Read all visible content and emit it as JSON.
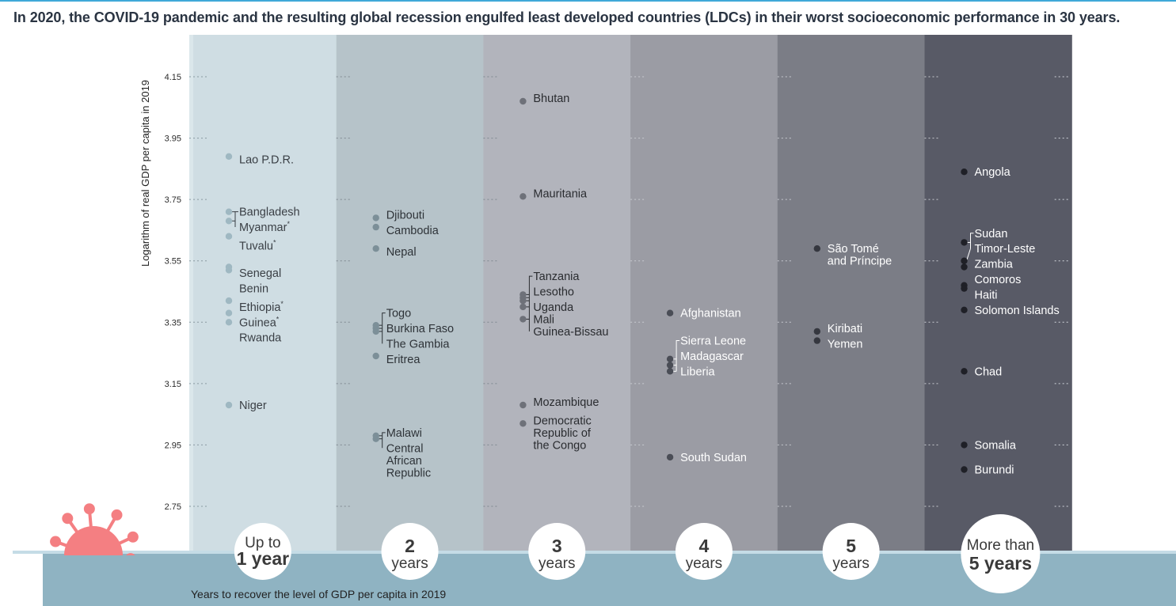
{
  "headline": "In 2020, the COVID-19 pandemic and the resulting global recession engulfed least developed countries (LDCs) in their worst socioeconomic performance in 30 years.",
  "chart_data": {
    "type": "scatter",
    "ylabel": "Logarithm of real GDP per capita in 2019",
    "xlabel": "Years to recover the level of GDP per capita in 2019",
    "yticks": [
      4.15,
      3.95,
      3.75,
      3.55,
      3.35,
      3.15,
      2.95,
      2.75
    ],
    "ylim": [
      2.6,
      4.29
    ],
    "colors": {
      "band_fills": [
        "#cfdde3",
        "#b6c3c9",
        "#b2b4bc",
        "#9b9ca4",
        "#7b7d86",
        "#585a66"
      ],
      "dot_colors": [
        "#9fb8c2",
        "#7c8f98",
        "#6e7179",
        "#4a4d56",
        "#35373f",
        "#1f2027"
      ],
      "label_colors": [
        "#3a3f45",
        "#2e3338",
        "#2a2c30",
        "#ffffff",
        "#ffffff",
        "#ffffff"
      ],
      "floor": "#8fb3c2",
      "virus": "#f47f82"
    },
    "groups": [
      {
        "category_line1": "Up to",
        "category_line2": "1 year",
        "label_style": "a",
        "countries": [
          {
            "name": "Lao P.D.R.",
            "y": 3.89
          },
          {
            "name": "Bangladesh",
            "y": 3.71
          },
          {
            "name": "Myanmar*",
            "y": 3.68
          },
          {
            "name": "Tuvalu*",
            "y": 3.63
          },
          {
            "name": "Senegal",
            "y": 3.53
          },
          {
            "name": "Benin",
            "y": 3.52
          },
          {
            "name": "Ethiopia*",
            "y": 3.42
          },
          {
            "name": "Guinea*",
            "y": 3.38
          },
          {
            "name": "Rwanda",
            "y": 3.35
          },
          {
            "name": "Niger",
            "y": 3.08
          }
        ]
      },
      {
        "category_line1": "2",
        "category_line2": "years",
        "label_style": "b",
        "countries": [
          {
            "name": "Djibouti",
            "y": 3.69
          },
          {
            "name": "Cambodia",
            "y": 3.66
          },
          {
            "name": "Nepal",
            "y": 3.59
          },
          {
            "name": "Togo",
            "y": 3.34
          },
          {
            "name": "Burkina Faso",
            "y": 3.33
          },
          {
            "name": "The Gambia",
            "y": 3.32
          },
          {
            "name": "Eritrea",
            "y": 3.24
          },
          {
            "name": "Malawi",
            "y": 2.98
          },
          {
            "name": "Central African Republic",
            "y": 2.97
          }
        ]
      },
      {
        "category_line1": "3",
        "category_line2": "years",
        "label_style": "b",
        "countries": [
          {
            "name": "Bhutan",
            "y": 4.07
          },
          {
            "name": "Mauritania",
            "y": 3.76
          },
          {
            "name": "Tanzania",
            "y": 3.44
          },
          {
            "name": "Lesotho",
            "y": 3.43
          },
          {
            "name": "Uganda",
            "y": 3.42
          },
          {
            "name": "Mali",
            "y": 3.4
          },
          {
            "name": "Guinea-Bissau",
            "y": 3.36
          },
          {
            "name": "Mozambique",
            "y": 3.08
          },
          {
            "name": "Democratic Republic of the Congo",
            "y": 3.02
          }
        ]
      },
      {
        "category_line1": "4",
        "category_line2": "years",
        "label_style": "b",
        "countries": [
          {
            "name": "Afghanistan",
            "y": 3.38
          },
          {
            "name": "Sierra Leone",
            "y": 3.23
          },
          {
            "name": "Madagascar",
            "y": 3.21
          },
          {
            "name": "Liberia",
            "y": 3.19
          },
          {
            "name": "South Sudan",
            "y": 2.91
          }
        ]
      },
      {
        "category_line1": "5",
        "category_line2": "years",
        "label_style": "b",
        "countries": [
          {
            "name": "São Tomé and Príncipe",
            "y": 3.59
          },
          {
            "name": "Kiribati",
            "y": 3.32
          },
          {
            "name": "Yemen",
            "y": 3.29
          }
        ]
      },
      {
        "category_line1": "More than",
        "category_line2": "5 years",
        "label_style": "c",
        "countries": [
          {
            "name": "Angola",
            "y": 3.84
          },
          {
            "name": "Sudan",
            "y": 3.61
          },
          {
            "name": "Timor-Leste",
            "y": 3.55
          },
          {
            "name": "Zambia",
            "y": 3.53
          },
          {
            "name": "Comoros",
            "y": 3.47
          },
          {
            "name": "Haiti",
            "y": 3.46
          },
          {
            "name": "Solomon Islands",
            "y": 3.39
          },
          {
            "name": "Chad",
            "y": 3.19
          },
          {
            "name": "Somalia",
            "y": 2.95
          },
          {
            "name": "Burundi",
            "y": 2.87
          }
        ]
      }
    ]
  }
}
